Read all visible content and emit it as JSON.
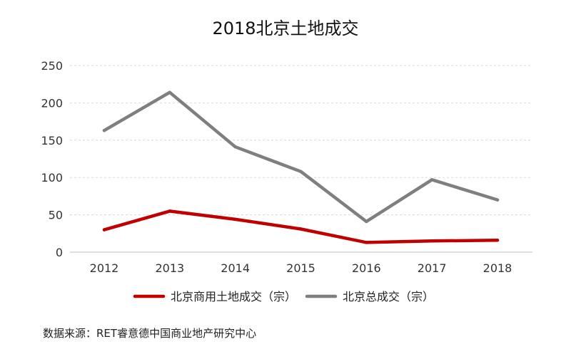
{
  "chart_data": {
    "type": "line",
    "title": "2018北京土地成交",
    "categories": [
      "2012",
      "2013",
      "2014",
      "2015",
      "2016",
      "2017",
      "2018"
    ],
    "series": [
      {
        "name": "北京商用土地成交（宗）",
        "color": "#c00000",
        "values": [
          30,
          55,
          44,
          31,
          13,
          15,
          16
        ]
      },
      {
        "name": "北京总成交（宗）",
        "color": "#7f7f7f",
        "values": [
          163,
          214,
          141,
          108,
          41,
          97,
          70
        ]
      }
    ],
    "xlabel": "",
    "ylabel": "",
    "ylim": [
      0,
      250
    ],
    "yticks": [
      0,
      50,
      100,
      150,
      200,
      250
    ],
    "grid": true,
    "legend_position": "bottom"
  },
  "footer": {
    "source": "数据来源：RET睿意德中国商业地产研究中心"
  }
}
